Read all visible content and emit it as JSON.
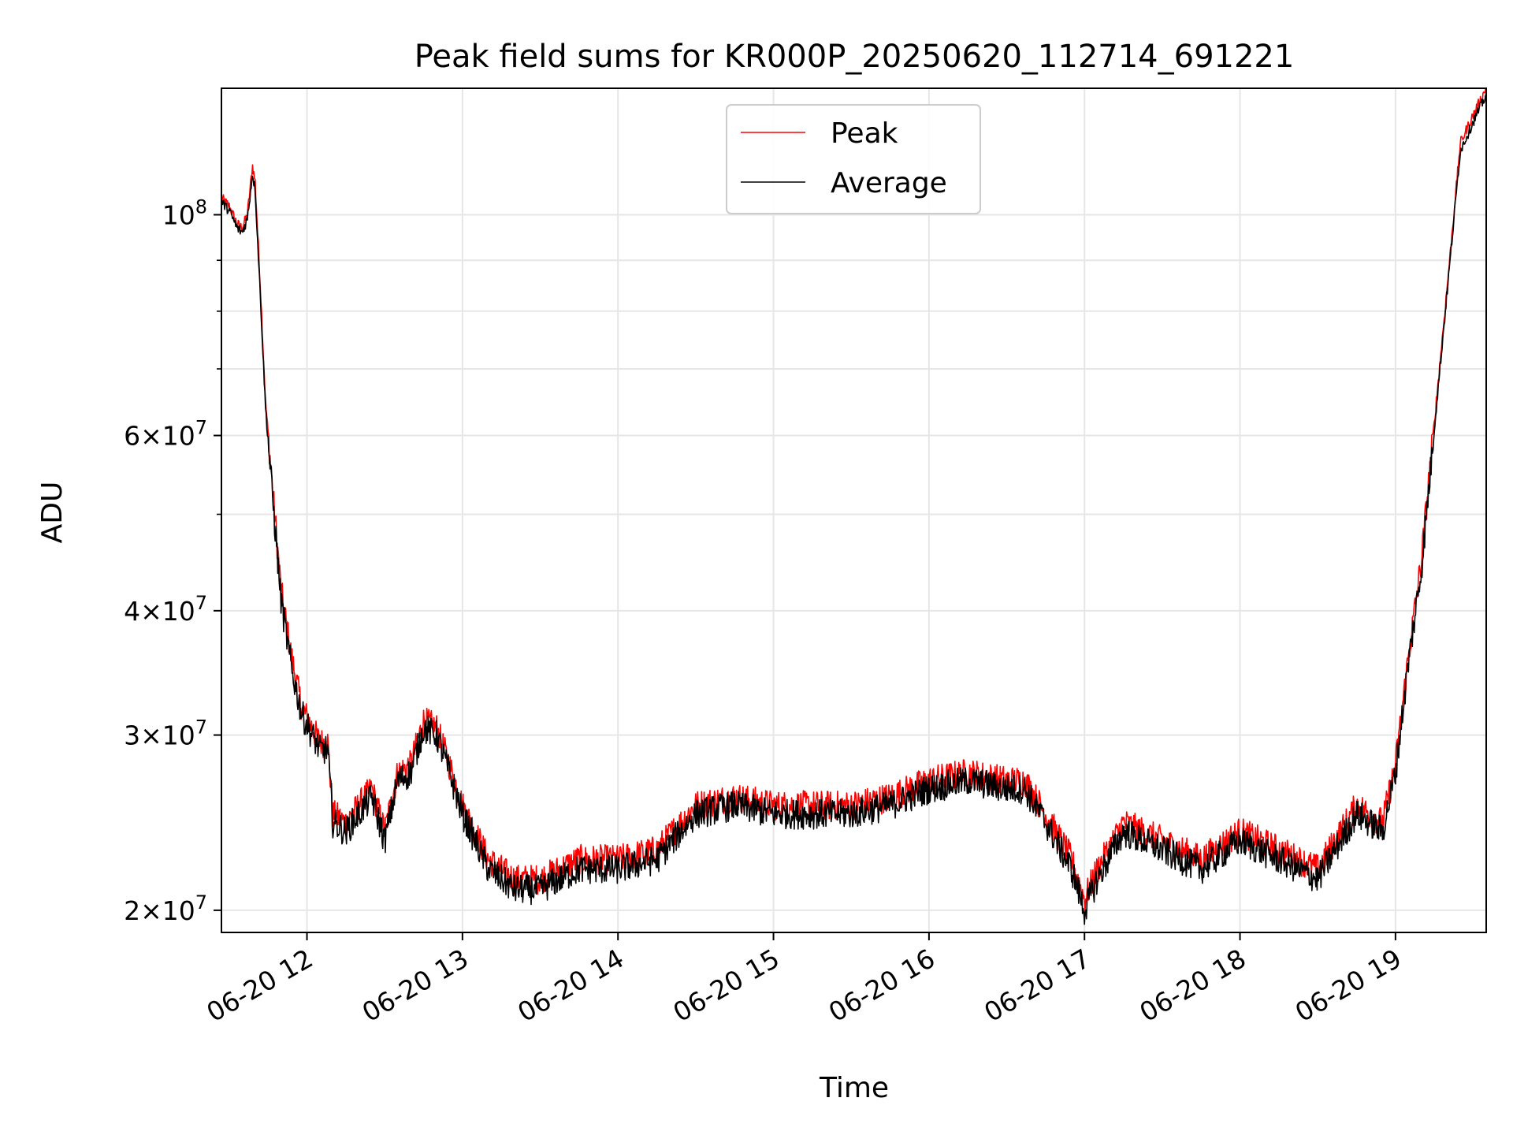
{
  "chart_data": {
    "type": "line",
    "title": "Peak field sums for KR000P_20250620_112714_691221",
    "xlabel": "Time",
    "ylabel": "ADU",
    "y_scale": "log",
    "grid": true,
    "legend_placement": "top-center",
    "xlim": [
      "2025-06-20 11:27",
      "2025-06-20 19:35"
    ],
    "ylim": [
      19000000,
      134000000
    ],
    "x_ticks": [
      {
        "t": "2025-06-20 12:00",
        "label": "06-20 12"
      },
      {
        "t": "2025-06-20 13:00",
        "label": "06-20 13"
      },
      {
        "t": "2025-06-20 14:00",
        "label": "06-20 14"
      },
      {
        "t": "2025-06-20 15:00",
        "label": "06-20 15"
      },
      {
        "t": "2025-06-20 16:00",
        "label": "06-20 16"
      },
      {
        "t": "2025-06-20 17:00",
        "label": "06-20 17"
      },
      {
        "t": "2025-06-20 18:00",
        "label": "06-20 18"
      },
      {
        "t": "2025-06-20 19:00",
        "label": "06-20 19"
      }
    ],
    "y_major_ticks": [
      {
        "value": 20000000,
        "mantissa": "2",
        "exponent": "7"
      },
      {
        "value": 30000000,
        "mantissa": "3",
        "exponent": "7"
      },
      {
        "value": 40000000,
        "mantissa": "4",
        "exponent": "7"
      },
      {
        "value": 60000000,
        "mantissa": "6",
        "exponent": "7"
      },
      {
        "value": 100000000,
        "mantissa": "",
        "exponent": "8"
      }
    ],
    "y_minor_ticks": [
      50000000,
      70000000,
      80000000,
      90000000
    ],
    "series": [
      {
        "name": "Peak",
        "color": "#ff0000",
        "x": [
          "11:27",
          "11:30",
          "11:33",
          "11:35",
          "11:37",
          "11:39",
          "11:40",
          "11:42",
          "11:44",
          "11:47",
          "11:50",
          "11:54",
          "11:58",
          "12:02",
          "12:05",
          "12:08",
          "12:10",
          "12:15",
          "12:20",
          "12:25",
          "12:30",
          "12:35",
          "12:40",
          "12:45",
          "12:50",
          "12:55",
          "13:00",
          "13:10",
          "13:20",
          "13:30",
          "13:45",
          "14:00",
          "14:15",
          "14:30",
          "14:45",
          "15:00",
          "15:15",
          "15:30",
          "15:45",
          "16:00",
          "16:15",
          "16:30",
          "16:37",
          "16:45",
          "16:55",
          "17:00",
          "17:05",
          "17:15",
          "17:30",
          "17:45",
          "18:00",
          "18:15",
          "18:30",
          "18:45",
          "18:50",
          "18:55",
          "19:00",
          "19:05",
          "19:10",
          "19:15",
          "19:20",
          "19:25",
          "19:30",
          "19:35"
        ],
        "y": [
          104000000,
          102000000,
          98000000,
          97000000,
          100000000,
          112000000,
          108000000,
          85000000,
          65000000,
          52000000,
          42000000,
          36000000,
          32000000,
          30500000,
          29500000,
          29500000,
          25000000,
          24500000,
          25500000,
          26500000,
          24000000,
          27500000,
          28000000,
          31000000,
          30500000,
          28000000,
          25500000,
          22500000,
          21500000,
          21500000,
          22500000,
          22500000,
          23000000,
          25500000,
          26000000,
          25500000,
          25500000,
          25500000,
          26000000,
          27000000,
          27500000,
          27000000,
          27000000,
          25000000,
          22500000,
          20500000,
          22000000,
          24500000,
          23500000,
          22500000,
          24000000,
          23000000,
          22000000,
          25500000,
          25000000,
          24500000,
          28000000,
          36000000,
          45000000,
          62000000,
          85000000,
          118000000,
          126000000,
          134000000
        ]
      },
      {
        "name": "Average",
        "color": "#000000",
        "x": [
          "11:27",
          "11:30",
          "11:33",
          "11:35",
          "11:37",
          "11:39",
          "11:40",
          "11:42",
          "11:44",
          "11:47",
          "11:50",
          "11:54",
          "11:58",
          "12:02",
          "12:05",
          "12:08",
          "12:10",
          "12:15",
          "12:20",
          "12:25",
          "12:30",
          "12:35",
          "12:40",
          "12:45",
          "12:50",
          "12:55",
          "13:00",
          "13:10",
          "13:20",
          "13:30",
          "13:45",
          "14:00",
          "14:15",
          "14:30",
          "14:45",
          "15:00",
          "15:15",
          "15:30",
          "15:45",
          "16:00",
          "16:15",
          "16:30",
          "16:37",
          "16:45",
          "16:55",
          "17:00",
          "17:05",
          "17:15",
          "17:30",
          "17:45",
          "18:00",
          "18:15",
          "18:30",
          "18:45",
          "18:50",
          "18:55",
          "19:00",
          "19:05",
          "19:10",
          "19:15",
          "19:20",
          "19:25",
          "19:30",
          "19:35"
        ],
        "y": [
          103000000,
          101000000,
          97000000,
          96000000,
          99000000,
          110000000,
          106000000,
          83000000,
          64000000,
          51000000,
          41000000,
          35000000,
          31500000,
          30000000,
          29000000,
          29000000,
          24500000,
          24000000,
          25000000,
          26000000,
          23500000,
          27000000,
          27500000,
          30500000,
          30000000,
          27500000,
          25000000,
          22000000,
          21000000,
          21000000,
          22000000,
          22000000,
          22500000,
          25000000,
          25500000,
          25000000,
          25000000,
          25000000,
          25500000,
          26500000,
          27000000,
          26500000,
          26500000,
          24500000,
          22000000,
          20000000,
          21500000,
          24000000,
          23000000,
          22000000,
          23500000,
          22500000,
          21500000,
          25000000,
          24500000,
          24000000,
          27500000,
          35500000,
          44000000,
          61000000,
          84000000,
          116000000,
          124000000,
          132000000
        ]
      }
    ]
  }
}
